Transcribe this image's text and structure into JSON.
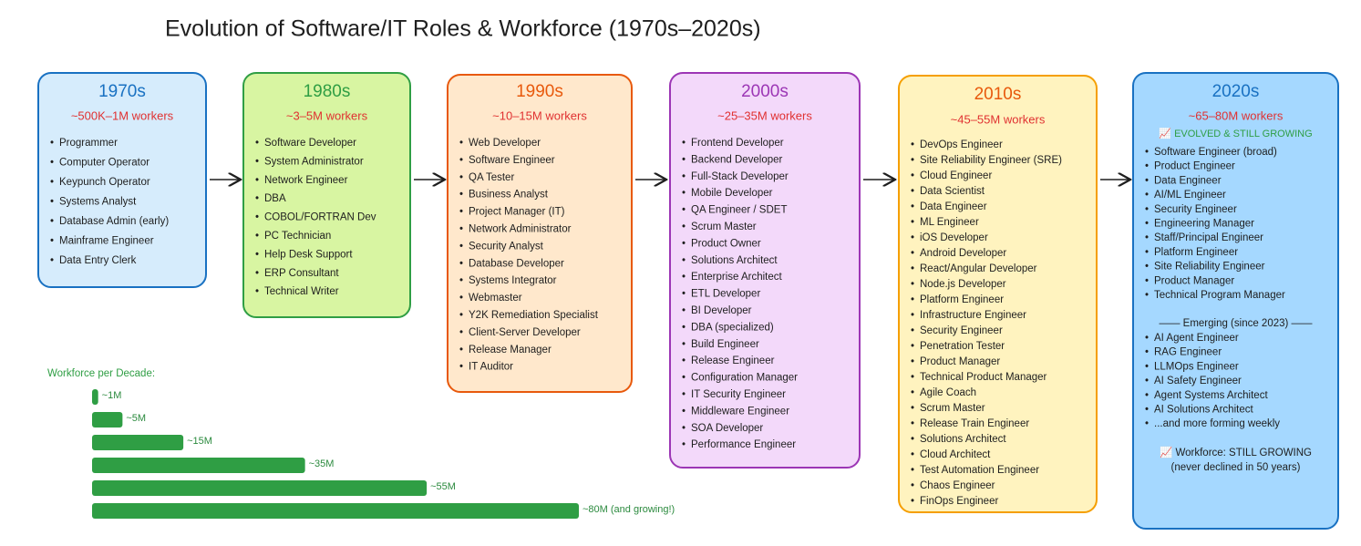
{
  "title": "Evolution of Software/IT Roles & Workforce (1970s–2020s)",
  "decades": [
    {
      "decade": "1970s",
      "workers": "~500K–1M workers",
      "roles": [
        "Programmer",
        "Computer Operator",
        "Keypunch Operator",
        "Systems Analyst",
        "Database Admin (early)",
        "Mainframe Engineer",
        "Data Entry Clerk"
      ]
    },
    {
      "decade": "1980s",
      "workers": "~3–5M workers",
      "roles": [
        "Software Developer",
        "System Administrator",
        "Network Engineer",
        "DBA",
        "COBOL/FORTRAN Dev",
        "PC Technician",
        "Help Desk Support",
        "ERP Consultant",
        "Technical Writer"
      ]
    },
    {
      "decade": "1990s",
      "workers": "~10–15M workers",
      "roles": [
        "Web Developer",
        "Software Engineer",
        "QA Tester",
        "Business Analyst",
        "Project Manager (IT)",
        "Network Administrator",
        "Security Analyst",
        "Database Developer",
        "Systems Integrator",
        "Webmaster",
        "Y2K Remediation Specialist",
        "Client-Server Developer",
        "Release Manager",
        "IT Auditor"
      ]
    },
    {
      "decade": "2000s",
      "workers": "~25–35M workers",
      "roles": [
        "Frontend Developer",
        "Backend Developer",
        "Full-Stack Developer",
        "Mobile Developer",
        "QA Engineer / SDET",
        "Scrum Master",
        "Product Owner",
        "Solutions Architect",
        "Enterprise Architect",
        "ETL Developer",
        "BI Developer",
        "DBA (specialized)",
        "Build Engineer",
        "Release Engineer",
        "Configuration Manager",
        "IT Security Engineer",
        "Middleware Engineer",
        "SOA Developer",
        "Performance Engineer"
      ]
    },
    {
      "decade": "2010s",
      "workers": "~45–55M workers",
      "roles": [
        "DevOps Engineer",
        "Site Reliability Engineer (SRE)",
        "Cloud Engineer",
        "Data Scientist",
        "Data Engineer",
        "ML Engineer",
        "iOS Developer",
        "Android Developer",
        "React/Angular Developer",
        "Node.js Developer",
        "Platform Engineer",
        "Infrastructure Engineer",
        "Security Engineer",
        "Penetration Tester",
        "Product Manager",
        "Technical Product Manager",
        "Agile Coach",
        "Scrum Master",
        "Release Train Engineer",
        "Solutions Architect",
        "Cloud Architect",
        "Test Automation Engineer",
        "Chaos Engineer",
        "FinOps Engineer"
      ]
    },
    {
      "decade": "2020s",
      "workers": "~65–80M workers",
      "badge": "📈 EVOLVED & STILL GROWING",
      "roles": [
        "Software Engineer (broad)",
        "Product Engineer",
        "Data Engineer",
        "AI/ML Engineer",
        "Security Engineer",
        "Engineering Manager",
        "Staff/Principal Engineer",
        "Platform Engineer",
        "Site Reliability Engineer",
        "Product Manager",
        "Technical Program Manager"
      ],
      "emerging_heading": "—— Emerging (since 2023) ——",
      "emerging_roles": [
        "AI Agent Engineer",
        "RAG Engineer",
        "LLMOps Engineer",
        "AI Safety Engineer",
        "Agent Systems Architect",
        "AI Solutions Architect",
        "...and more forming weekly"
      ],
      "footer": [
        "📈 Workforce: STILL GROWING",
        "(never declined in 50 years)"
      ]
    }
  ],
  "chart_data": {
    "type": "bar",
    "title": "Workforce per Decade:",
    "values": [
      1,
      5,
      15,
      35,
      55,
      80
    ],
    "value_labels": [
      "~1M",
      "~5M",
      "~15M",
      "~35M",
      "~55M",
      "~80M (and growing!)"
    ],
    "color": "#2f9e44"
  }
}
